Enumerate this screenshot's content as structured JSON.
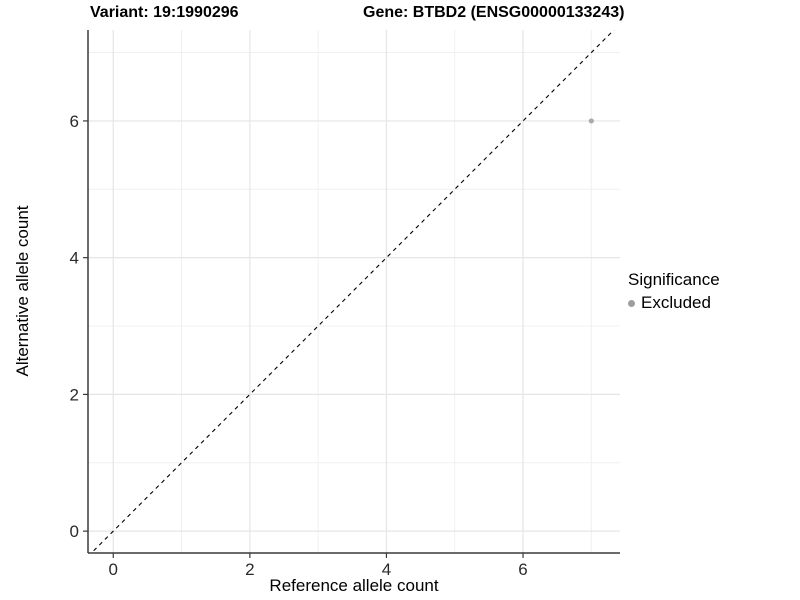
{
  "chart_data": {
    "type": "scatter",
    "title_parts": [
      "Variant: 19:1990296",
      "Gene: BTBD2 (ENSG00000133243)"
    ],
    "xlabel": "Reference allele count",
    "ylabel": "Alternative allele count",
    "xlim": [
      -0.37,
      7.42
    ],
    "ylim": [
      -0.32,
      7.33
    ],
    "x_major_ticks": [
      0,
      2,
      4,
      6
    ],
    "y_major_ticks": [
      0,
      2,
      4,
      6
    ],
    "x_minor_gridlines": [
      1,
      3,
      5,
      7
    ],
    "y_minor_gridlines": [
      1,
      3,
      5,
      7
    ],
    "grid": true,
    "series": [
      {
        "name": "Excluded",
        "color": "#aaaaaa",
        "points": [
          {
            "x": 7,
            "y": 6
          }
        ]
      }
    ],
    "reference_line": {
      "slope": 1,
      "intercept": 0,
      "style": "dashed",
      "color": "#000000"
    },
    "legend": {
      "title": "Significance",
      "position": "right",
      "items": [
        {
          "label": "Excluded",
          "color": "#9e9e9e"
        }
      ]
    },
    "colors": {
      "grid_major": "#e5e5e5",
      "grid_minor": "#f0f0f0",
      "axis": "#3a3a3a",
      "tick_text": "#2b2b2b"
    }
  }
}
